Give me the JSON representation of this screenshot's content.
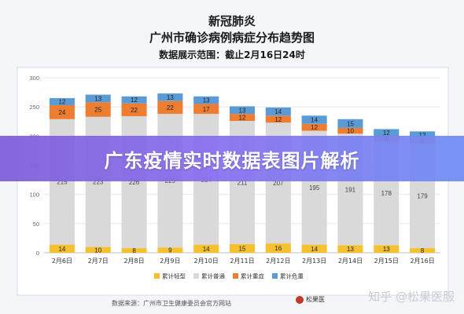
{
  "chart_data": {
    "type": "bar",
    "stacked": true,
    "title": "新冠肺炎",
    "subtitle": "广州市确诊病例病症分布趋势图",
    "range_note": "数据展示范围：截止2月16日24时",
    "categories": [
      "2月6日",
      "2月7日",
      "2月8日",
      "2月9日",
      "2月10日",
      "2月11日",
      "2月12日",
      "2月13日",
      "2月14日",
      "2月15日",
      "2月16日"
    ],
    "ylim": [
      0,
      300
    ],
    "yticks": [
      0,
      50,
      100,
      150,
      200,
      250,
      300
    ],
    "grid": true,
    "legend_position": "bottom",
    "series": [
      {
        "name": "累计轻型",
        "color": "#f5c12e",
        "values": [
          14,
          10,
          8,
          9,
          14,
          15,
          16,
          14,
          13,
          13,
          8
        ]
      },
      {
        "name": "累计普通",
        "color": "#d9d9d9",
        "values": [
          215,
          223,
          226,
          229,
          224,
          211,
          207,
          195,
          191,
          178,
          179
        ]
      },
      {
        "name": "累计重症",
        "color": "#ed7d31",
        "values": [
          24,
          25,
          22,
          22,
          17,
          12,
          12,
          12,
          10,
          9,
          9
        ]
      },
      {
        "name": "累计危重",
        "color": "#5b9bd5",
        "values": [
          12,
          13,
          12,
          13,
          13,
          13,
          14,
          14,
          15,
          12,
          12
        ]
      }
    ]
  },
  "source_text": "数据来源：广州市卫生健康委员会官方网站",
  "logo_text": "松果医",
  "banner_text": "广东疫情实时数据表图片解析",
  "watermark_text": "知乎 @松果医服"
}
